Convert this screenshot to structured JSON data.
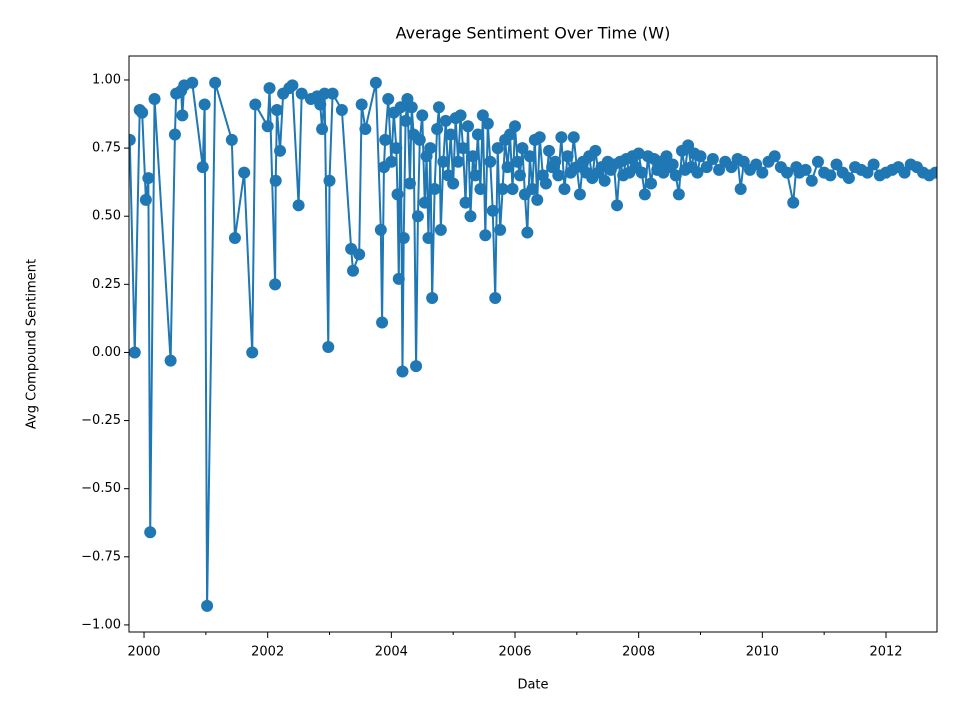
{
  "chart_data": {
    "type": "line",
    "title": "Average Sentiment Over Time (W)",
    "xlabel": "Date",
    "ylabel": "Avg Compound Sentiment",
    "color": "#1f77b4",
    "marker": "o",
    "xlim": [
      1999.757,
      2012.825
    ],
    "ylim": [
      -1.026,
      1.088
    ],
    "xticks": [
      2000,
      2002,
      2004,
      2006,
      2008,
      2010,
      2012
    ],
    "xminorticks": [
      2001,
      2003,
      2005,
      2007,
      2009,
      2011
    ],
    "yticks": [
      {
        "value": -1,
        "label": "−1.00"
      },
      {
        "value": -0.75,
        "label": "−0.75"
      },
      {
        "value": -0.5,
        "label": "−0.50"
      },
      {
        "value": -0.25,
        "label": "−0.25"
      },
      {
        "value": 0,
        "label": "0.00"
      },
      {
        "value": 0.25,
        "label": "0.25"
      },
      {
        "value": 0.5,
        "label": "0.50"
      },
      {
        "value": 0.75,
        "label": "0.75"
      },
      {
        "value": 1,
        "label": "1.00"
      }
    ],
    "x": [
      1999.77,
      1999.85,
      1999.93,
      1999.97,
      2000.03,
      2000.07,
      2000.1,
      2000.17,
      2000.43,
      2000.5,
      2000.52,
      2000.6,
      2000.62,
      2000.65,
      2000.78,
      2000.95,
      2000.98,
      2001.02,
      2001.15,
      2001.42,
      2001.47,
      2001.62,
      2001.75,
      2001.8,
      2002.0,
      2002.03,
      2002.12,
      2002.13,
      2002.15,
      2002.2,
      2002.25,
      2002.35,
      2002.4,
      2002.5,
      2002.55,
      2002.7,
      2002.8,
      2002.85,
      2002.88,
      2002.92,
      2002.98,
      2003.0,
      2003.05,
      2003.2,
      2003.35,
      2003.38,
      2003.48,
      2003.52,
      2003.58,
      2003.75,
      2003.83,
      2003.85,
      2003.88,
      2003.9,
      2003.95,
      2004.0,
      2004.04,
      2004.08,
      2004.1,
      2004.12,
      2004.15,
      2004.18,
      2004.2,
      2004.23,
      2004.26,
      2004.3,
      2004.33,
      2004.36,
      2004.4,
      2004.43,
      2004.46,
      2004.5,
      2004.54,
      2004.57,
      2004.6,
      2004.63,
      2004.66,
      2004.7,
      2004.74,
      2004.77,
      2004.8,
      2004.84,
      2004.88,
      2004.92,
      2004.96,
      2005.0,
      2005.04,
      2005.08,
      2005.12,
      2005.16,
      2005.2,
      2005.24,
      2005.28,
      2005.32,
      2005.36,
      2005.4,
      2005.44,
      2005.48,
      2005.52,
      2005.56,
      2005.6,
      2005.64,
      2005.68,
      2005.72,
      2005.76,
      2005.8,
      2005.84,
      2005.88,
      2005.92,
      2005.96,
      2006.0,
      2006.04,
      2006.08,
      2006.12,
      2006.16,
      2006.2,
      2006.24,
      2006.28,
      2006.32,
      2006.36,
      2006.4,
      2006.45,
      2006.5,
      2006.55,
      2006.6,
      2006.65,
      2006.7,
      2006.75,
      2006.8,
      2006.85,
      2006.9,
      2006.95,
      2007.0,
      2007.05,
      2007.1,
      2007.15,
      2007.2,
      2007.25,
      2007.3,
      2007.35,
      2007.4,
      2007.45,
      2007.5,
      2007.55,
      2007.6,
      2007.65,
      2007.7,
      2007.75,
      2007.8,
      2007.85,
      2007.9,
      2007.95,
      2008.0,
      2008.05,
      2008.1,
      2008.15,
      2008.2,
      2008.25,
      2008.3,
      2008.35,
      2008.4,
      2008.45,
      2008.5,
      2008.55,
      2008.6,
      2008.65,
      2008.7,
      2008.75,
      2008.8,
      2008.85,
      2008.9,
      2008.95,
      2009.0,
      2009.1,
      2009.2,
      2009.3,
      2009.4,
      2009.5,
      2009.6,
      2009.65,
      2009.7,
      2009.8,
      2009.9,
      2010.0,
      2010.1,
      2010.2,
      2010.3,
      2010.4,
      2010.5,
      2010.55,
      2010.6,
      2010.7,
      2010.8,
      2010.9,
      2011.0,
      2011.1,
      2011.2,
      2011.3,
      2011.4,
      2011.5,
      2011.6,
      2011.7,
      2011.8,
      2011.9,
      2012.0,
      2012.1,
      2012.2,
      2012.3,
      2012.4,
      2012.5,
      2012.6,
      2012.7,
      2012.8
    ],
    "values": [
      0.78,
      0.0,
      0.89,
      0.88,
      0.56,
      0.64,
      -0.66,
      0.93,
      -0.03,
      0.8,
      0.95,
      0.96,
      0.87,
      0.98,
      0.99,
      0.68,
      0.91,
      -0.93,
      0.99,
      0.78,
      0.42,
      0.66,
      0.0,
      0.91,
      0.83,
      0.97,
      0.25,
      0.63,
      0.89,
      0.74,
      0.95,
      0.97,
      0.98,
      0.54,
      0.95,
      0.93,
      0.94,
      0.91,
      0.82,
      0.95,
      0.02,
      0.63,
      0.95,
      0.89,
      0.38,
      0.3,
      0.36,
      0.91,
      0.82,
      0.99,
      0.45,
      0.11,
      0.68,
      0.78,
      0.93,
      0.7,
      0.88,
      0.75,
      0.58,
      0.27,
      0.9,
      -0.07,
      0.42,
      0.85,
      0.93,
      0.62,
      0.9,
      0.8,
      -0.05,
      0.5,
      0.78,
      0.87,
      0.55,
      0.72,
      0.42,
      0.75,
      0.2,
      0.6,
      0.82,
      0.9,
      0.45,
      0.7,
      0.85,
      0.65,
      0.8,
      0.62,
      0.86,
      0.7,
      0.87,
      0.75,
      0.55,
      0.83,
      0.5,
      0.72,
      0.65,
      0.8,
      0.6,
      0.87,
      0.43,
      0.84,
      0.7,
      0.52,
      0.2,
      0.75,
      0.45,
      0.6,
      0.78,
      0.68,
      0.8,
      0.6,
      0.83,
      0.7,
      0.65,
      0.75,
      0.58,
      0.44,
      0.72,
      0.6,
      0.78,
      0.56,
      0.79,
      0.65,
      0.62,
      0.74,
      0.68,
      0.7,
      0.65,
      0.79,
      0.6,
      0.72,
      0.66,
      0.79,
      0.68,
      0.58,
      0.7,
      0.66,
      0.72,
      0.64,
      0.74,
      0.66,
      0.68,
      0.63,
      0.7,
      0.67,
      0.69,
      0.54,
      0.7,
      0.65,
      0.71,
      0.66,
      0.72,
      0.68,
      0.73,
      0.66,
      0.58,
      0.72,
      0.62,
      0.71,
      0.67,
      0.7,
      0.66,
      0.72,
      0.68,
      0.69,
      0.65,
      0.58,
      0.74,
      0.67,
      0.76,
      0.68,
      0.73,
      0.66,
      0.72,
      0.68,
      0.71,
      0.67,
      0.7,
      0.68,
      0.71,
      0.6,
      0.7,
      0.67,
      0.69,
      0.66,
      0.7,
      0.72,
      0.68,
      0.66,
      0.55,
      0.68,
      0.66,
      0.67,
      0.63,
      0.7,
      0.66,
      0.65,
      0.69,
      0.66,
      0.64,
      0.68,
      0.67,
      0.66,
      0.69,
      0.65,
      0.66,
      0.67,
      0.68,
      0.66,
      0.69,
      0.68,
      0.66,
      0.65,
      0.66
    ]
  }
}
